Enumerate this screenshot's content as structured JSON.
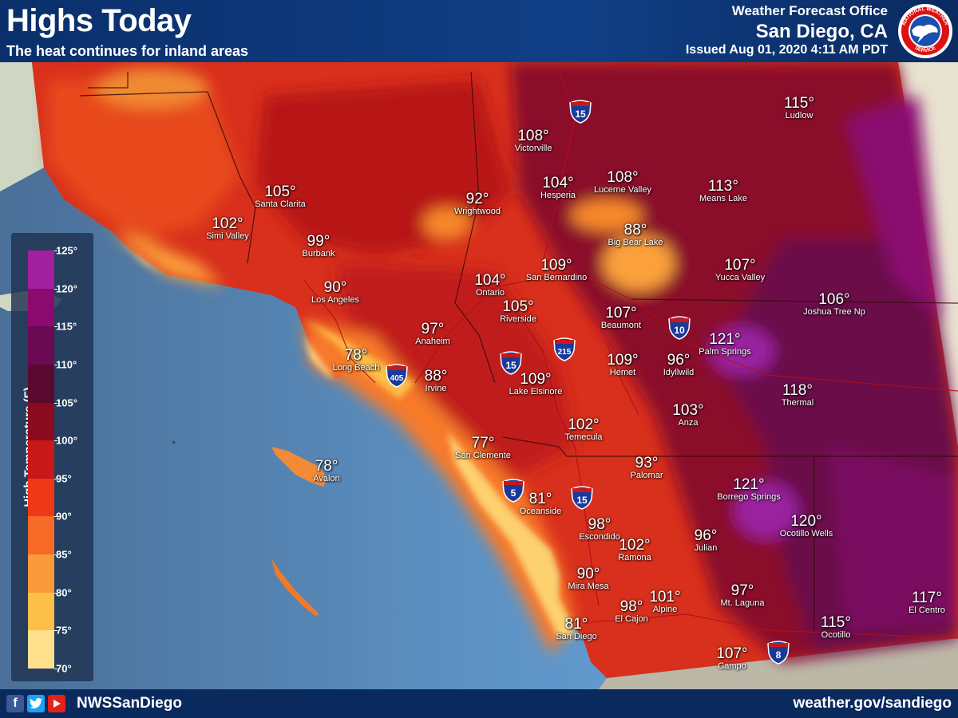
{
  "header": {
    "title": "Highs Today",
    "subtitle": "The heat continues for inland areas",
    "office": "Weather Forecast Office",
    "city": "San Diego, CA",
    "issued": "Issued Aug 01, 2020 4:11 AM PDT",
    "logo_text": "NATIONAL WEATHER SERVICE"
  },
  "footer": {
    "handle": "NWSSanDiego",
    "url": "weather.gov/sandiego",
    "icons": [
      "facebook-icon",
      "twitter-icon",
      "youtube-icon"
    ]
  },
  "legend": {
    "title": "High Temperature (F)",
    "ticks": [
      "125°",
      "120°",
      "115°",
      "110°",
      "105°",
      "100°",
      "95°",
      "90°",
      "85°",
      "80°",
      "75°",
      "70°"
    ],
    "colors": [
      "#a020a0",
      "#8a0a6e",
      "#6a0a52",
      "#5a0a2e",
      "#8a0a1e",
      "#c81818",
      "#ee3818",
      "#f76a28",
      "#fb9a3a",
      "#fcbf48",
      "#fedf8c",
      "#fff3c4"
    ]
  },
  "cities": [
    {
      "temp": "115°",
      "name": "Ludlow"
    },
    {
      "temp": "108°",
      "name": "Victorville"
    },
    {
      "temp": "104°",
      "name": "Hesperia"
    },
    {
      "temp": "108°",
      "name": "Lucerne Valley"
    },
    {
      "temp": "113°",
      "name": "Means Lake"
    },
    {
      "temp": "105°",
      "name": "Santa Clarita"
    },
    {
      "temp": "102°",
      "name": "Simi Valley"
    },
    {
      "temp": "92°",
      "name": "Wrightwood"
    },
    {
      "temp": "88°",
      "name": "Big Bear Lake"
    },
    {
      "temp": "99°",
      "name": "Burbank"
    },
    {
      "temp": "109°",
      "name": "San Bernardino"
    },
    {
      "temp": "104°",
      "name": "Ontario"
    },
    {
      "temp": "107°",
      "name": "Yucca Valley"
    },
    {
      "temp": "90°",
      "name": "Los Angeles"
    },
    {
      "temp": "105°",
      "name": "Riverside"
    },
    {
      "temp": "107°",
      "name": "Beaumont"
    },
    {
      "temp": "106°",
      "name": "Joshua Tree Np"
    },
    {
      "temp": "97°",
      "name": "Anaheim"
    },
    {
      "temp": "121°",
      "name": "Palm Springs"
    },
    {
      "temp": "78°",
      "name": "Long Beach"
    },
    {
      "temp": "109°",
      "name": "Hemet"
    },
    {
      "temp": "96°",
      "name": "Idyllwild"
    },
    {
      "temp": "88°",
      "name": "Irvine"
    },
    {
      "temp": "109°",
      "name": "Lake Elsinore"
    },
    {
      "temp": "118°",
      "name": "Thermal"
    },
    {
      "temp": "103°",
      "name": "Anza"
    },
    {
      "temp": "102°",
      "name": "Temecula"
    },
    {
      "temp": "77°",
      "name": "San Clemente"
    },
    {
      "temp": "78°",
      "name": "Avalon"
    },
    {
      "temp": "93°",
      "name": "Palomar"
    },
    {
      "temp": "121°",
      "name": "Borrego Springs"
    },
    {
      "temp": "81°",
      "name": "Oceanside"
    },
    {
      "temp": "120°",
      "name": "Ocotillo Wells"
    },
    {
      "temp": "98°",
      "name": "Escondido"
    },
    {
      "temp": "102°",
      "name": "Ramona"
    },
    {
      "temp": "96°",
      "name": "Julian"
    },
    {
      "temp": "90°",
      "name": "Mira Mesa"
    },
    {
      "temp": "101°",
      "name": "Alpine"
    },
    {
      "temp": "97°",
      "name": "Mt. Laguna"
    },
    {
      "temp": "98°",
      "name": "El Cajon"
    },
    {
      "temp": "117°",
      "name": "El Centro"
    },
    {
      "temp": "81°",
      "name": "San Diego"
    },
    {
      "temp": "115°",
      "name": "Ocotillo"
    },
    {
      "temp": "107°",
      "name": "Campo"
    }
  ],
  "shields": [
    "15",
    "10",
    "215",
    "15",
    "405",
    "5",
    "15",
    "8"
  ]
}
